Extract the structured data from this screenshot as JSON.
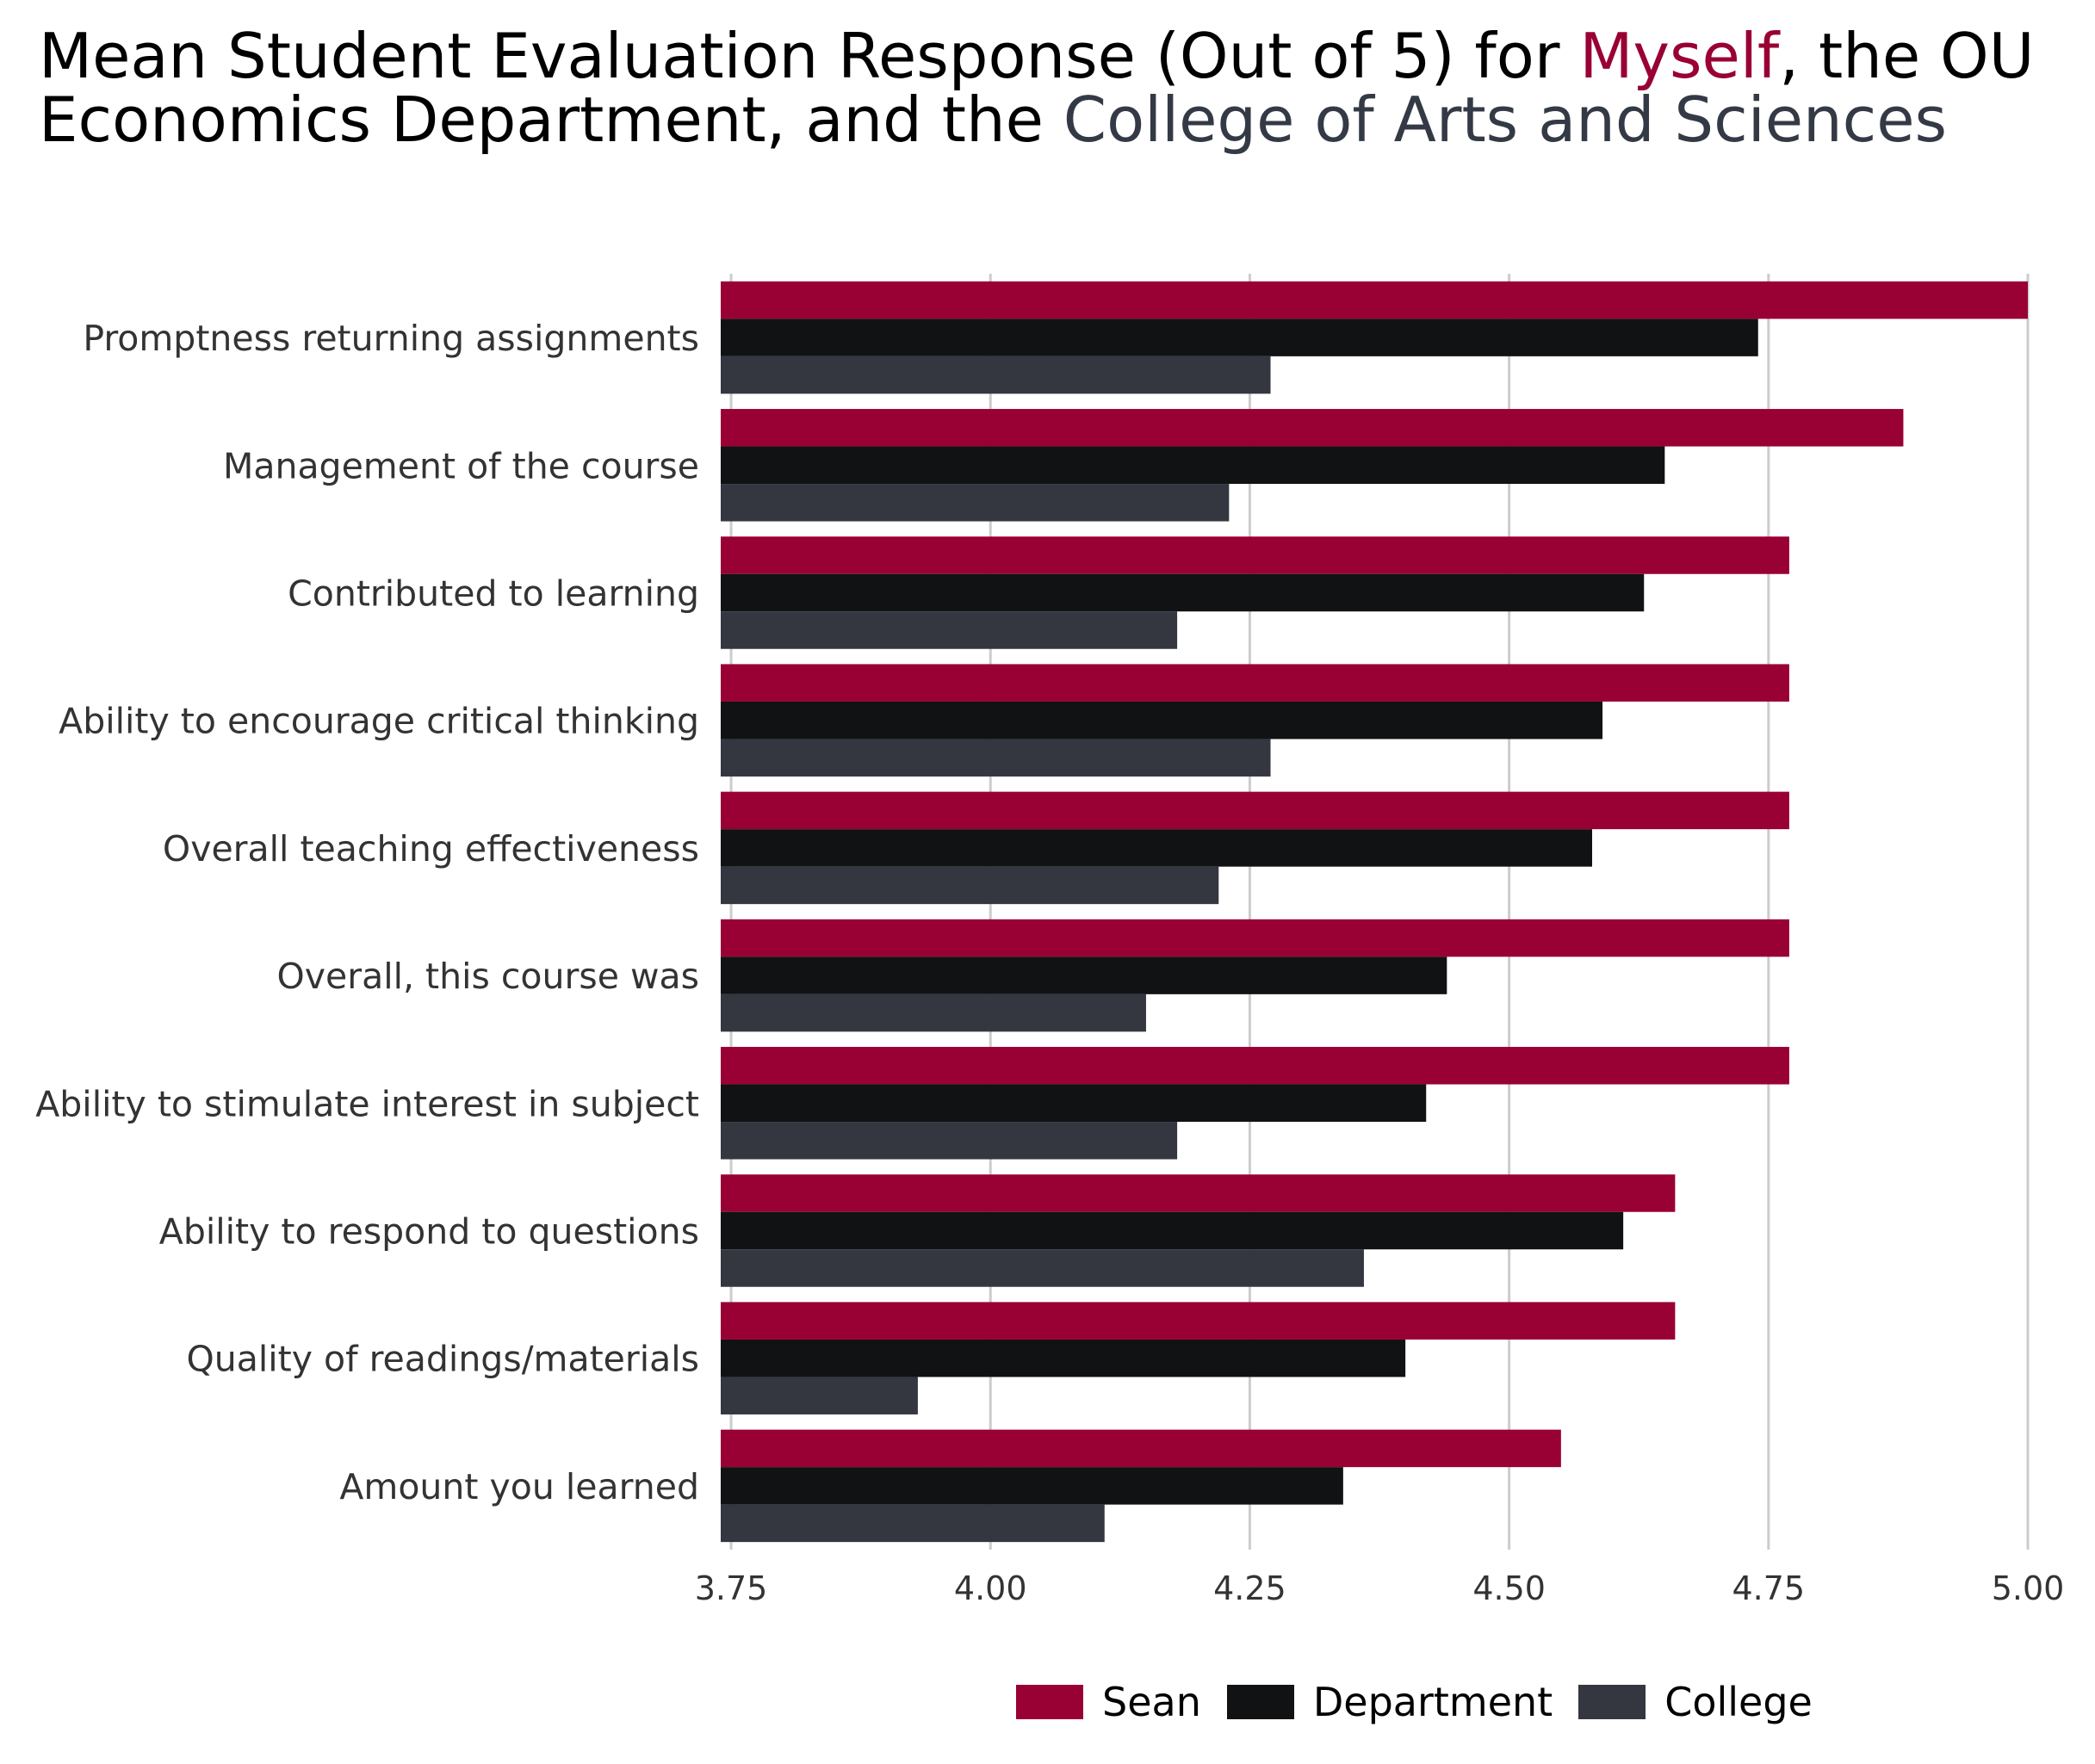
{
  "title": {
    "part1": "Mean Student Evaluation Response (Out of 5) for ",
    "hl1": "Myself",
    "part2": ", the OU Economics Department, and the ",
    "hl2": "College of Arts and Sciences"
  },
  "colors": {
    "sean": "#990033",
    "department": "#111214",
    "college": "#343640",
    "grid": "#cccccc",
    "axis_text": "#333333"
  },
  "legend": {
    "items": [
      {
        "label": "Sean",
        "color": "#990033"
      },
      {
        "label": "Department",
        "color": "#111214"
      },
      {
        "label": "College",
        "color": "#343640"
      }
    ]
  },
  "chart_data": {
    "type": "bar",
    "orientation": "horizontal",
    "categories": [
      "Promptness returning assignments",
      "Management of the course",
      "Contributed to learning",
      "Ability to encourage critical thinking",
      "Overall teaching effectiveness",
      "Overall, this course was",
      "Ability to stimulate interest in subject",
      "Ability to respond to questions",
      "Quality of readings/materials",
      "Amount you learned"
    ],
    "series": [
      {
        "name": "Sean",
        "values": [
          5.0,
          4.88,
          4.77,
          4.77,
          4.77,
          4.77,
          4.77,
          4.66,
          4.66,
          4.55
        ]
      },
      {
        "name": "Department",
        "values": [
          4.74,
          4.65,
          4.63,
          4.59,
          4.58,
          4.44,
          4.42,
          4.61,
          4.4,
          4.34
        ]
      },
      {
        "name": "College",
        "values": [
          4.27,
          4.23,
          4.18,
          4.27,
          4.22,
          4.15,
          4.18,
          4.36,
          3.93,
          4.11
        ]
      }
    ],
    "xlim": [
      3.74,
      5.0
    ],
    "xticks": [
      "3.75",
      "4.00",
      "4.25",
      "4.50",
      "4.75",
      "5.00"
    ],
    "xlabel": "",
    "ylabel": "",
    "grid": "vertical",
    "legend_position": "bottom"
  }
}
